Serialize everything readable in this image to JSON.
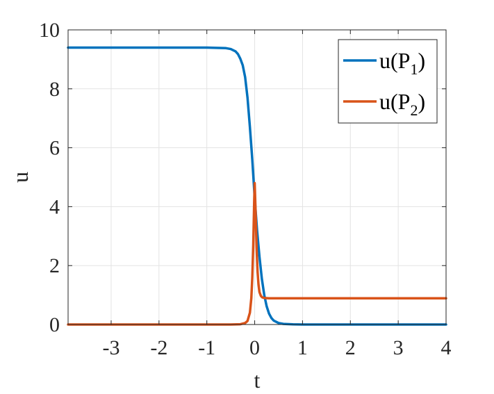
{
  "chart_data": {
    "type": "line",
    "xlabel": "t",
    "ylabel": "u",
    "xlim": [
      -3.9,
      4
    ],
    "ylim": [
      0,
      10
    ],
    "xticks": [
      -3,
      -2,
      -1,
      0,
      1,
      2,
      3,
      4
    ],
    "xtick_labels": [
      "-3",
      "-2",
      "-1",
      "0",
      "1",
      "2",
      "3",
      "4"
    ],
    "yticks": [
      0,
      2,
      4,
      6,
      8,
      10
    ],
    "ytick_labels": [
      "0",
      "2",
      "4",
      "6",
      "8",
      "10"
    ],
    "grid": true,
    "legend_position": "top-right",
    "series": [
      {
        "name": "u(P1)",
        "label_main": "u(P",
        "label_sub": "1",
        "label_tail": ")",
        "color": "#0072BD",
        "x": [
          -3.9,
          -2.0,
          -1.0,
          -0.6,
          -0.5,
          -0.4,
          -0.35,
          -0.3,
          -0.25,
          -0.2,
          -0.15,
          -0.1,
          -0.05,
          0.0,
          0.05,
          0.1,
          0.15,
          0.2,
          0.25,
          0.3,
          0.35,
          0.4,
          0.5,
          0.6,
          0.8,
          1.0,
          2.0,
          3.0,
          4.0
        ],
        "y": [
          9.4,
          9.4,
          9.4,
          9.38,
          9.35,
          9.27,
          9.18,
          9.02,
          8.8,
          8.4,
          7.7,
          6.7,
          5.6,
          4.3,
          3.2,
          2.3,
          1.55,
          1.0,
          0.62,
          0.37,
          0.22,
          0.13,
          0.05,
          0.02,
          0.005,
          0.0,
          0.0,
          0.0,
          0.0
        ]
      },
      {
        "name": "u(P2)",
        "label_main": "u(P",
        "label_sub": "2",
        "label_tail": ")",
        "color": "#D95319",
        "x": [
          -3.9,
          -2.0,
          -0.5,
          -0.3,
          -0.2,
          -0.15,
          -0.1,
          -0.07,
          -0.05,
          -0.03,
          -0.01,
          0.0,
          0.02,
          0.04,
          0.06,
          0.08,
          0.1,
          0.13,
          0.16,
          0.2,
          0.3,
          0.5,
          1.0,
          2.0,
          3.0,
          4.0
        ],
        "y": [
          0.0,
          0.0,
          0.0,
          0.01,
          0.05,
          0.12,
          0.4,
          0.9,
          1.6,
          2.7,
          4.2,
          4.8,
          3.8,
          2.6,
          1.8,
          1.35,
          1.1,
          0.97,
          0.92,
          0.9,
          0.89,
          0.89,
          0.89,
          0.89,
          0.89,
          0.89
        ]
      }
    ]
  }
}
